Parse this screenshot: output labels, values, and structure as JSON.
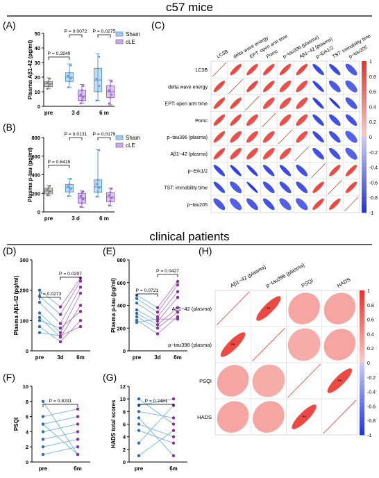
{
  "sections": {
    "mice_title": "c57 mice",
    "clinical_title": "clinical patients"
  },
  "colors": {
    "sham": "#5b9bd5",
    "cle": "#9966cc",
    "pre": "#7f7f7f",
    "patient_pre": "#2e6db4",
    "patient_post": "#8b2d9c",
    "line_pre_post": "#7ab1df",
    "corr_pos": "#e8322a",
    "corr_neg": "#2233dd"
  },
  "chart_data": [
    {
      "panel": "(A)",
      "type": "box",
      "categories": [
        "pre",
        "3 d",
        "6 m"
      ],
      "ylabel": "Plasma Aβ1-42 (pg/ml)",
      "ylim": [
        0,
        50
      ],
      "yticks": [
        0,
        10,
        20,
        30,
        40,
        50
      ],
      "legend": [
        "Sham",
        "cLE"
      ],
      "boxes": [
        {
          "cat": "pre",
          "group": "pre",
          "min": 12,
          "q1": 13.5,
          "median": 15.5,
          "q3": 17,
          "max": 19.5,
          "points": [
            12,
            14,
            15,
            16,
            17,
            19
          ]
        },
        {
          "cat": "3 d",
          "group": "Sham",
          "min": 13,
          "q1": 17,
          "median": 20,
          "q3": 23,
          "max": 29,
          "points": [
            13,
            17,
            19,
            21,
            23,
            28
          ]
        },
        {
          "cat": "3 d",
          "group": "cLE",
          "min": 2,
          "q1": 4,
          "median": 7,
          "q3": 11,
          "max": 15,
          "points": [
            2,
            4,
            6,
            8,
            11,
            14
          ]
        },
        {
          "cat": "6 m",
          "group": "Sham",
          "min": 4,
          "q1": 10,
          "median": 18,
          "q3": 26,
          "max": 36,
          "points": [
            4,
            10,
            14,
            19,
            26,
            34
          ]
        },
        {
          "cat": "6 m",
          "group": "cLE",
          "min": 1,
          "q1": 6,
          "median": 10,
          "q3": 14,
          "max": 18,
          "points": [
            2,
            6,
            8,
            11,
            14,
            17
          ]
        }
      ],
      "comparisons": [
        {
          "label": "P = 0.3249"
        },
        {
          "label": "P = 0.0072"
        },
        {
          "label": "P = 0.0275"
        }
      ]
    },
    {
      "panel": "(B)",
      "type": "box",
      "categories": [
        "pre",
        "3 d",
        "6 m"
      ],
      "ylabel": "Plasma p-tau (pg/ml)",
      "ylim": [
        0,
        800
      ],
      "yticks": [
        0,
        200,
        400,
        600,
        800
      ],
      "legend": [
        "Sham",
        "cLE"
      ],
      "boxes": [
        {
          "cat": "pre",
          "group": "pre",
          "min": 175,
          "q1": 195,
          "median": 225,
          "q3": 255,
          "max": 285,
          "points": [
            180,
            200,
            220,
            240,
            260,
            280
          ]
        },
        {
          "cat": "3 d",
          "group": "Sham",
          "min": 170,
          "q1": 215,
          "median": 260,
          "q3": 295,
          "max": 360,
          "points": [
            170,
            215,
            245,
            275,
            300,
            355
          ]
        },
        {
          "cat": "3 d",
          "group": "cLE",
          "min": 50,
          "q1": 95,
          "median": 150,
          "q3": 200,
          "max": 225,
          "points": [
            55,
            95,
            135,
            170,
            205,
            220
          ]
        },
        {
          "cat": "6 m",
          "group": "Sham",
          "min": 160,
          "q1": 210,
          "median": 270,
          "q3": 345,
          "max": 670,
          "points": [
            165,
            215,
            260,
            300,
            345,
            665
          ]
        },
        {
          "cat": "6 m",
          "group": "cLE",
          "min": 65,
          "q1": 110,
          "median": 160,
          "q3": 205,
          "max": 255,
          "points": [
            70,
            115,
            150,
            180,
            210,
            250
          ]
        }
      ],
      "comparisons": [
        {
          "label": "P = 0.6415"
        },
        {
          "label": "P = 0.0131"
        },
        {
          "label": "P = 0.0179"
        }
      ]
    },
    {
      "panel": "(C)",
      "type": "heatmap",
      "variables": [
        "LC3B",
        "delta wave energy",
        "EPT: open arm time",
        "Pomc",
        "p~tau396 (plasma)",
        "Aβ1~42 (plasma)",
        "p~Erk1/2",
        "TST: immobility time",
        "p~tau205"
      ],
      "matrix": [
        [
          1,
          0.85,
          0.85,
          0.85,
          0.85,
          0.85,
          -0.85,
          -0.85,
          -0.75
        ],
        [
          0.85,
          1,
          0.85,
          0.85,
          0.8,
          0.8,
          -0.9,
          -0.75,
          -0.7
        ],
        [
          0.85,
          0.85,
          1,
          0.8,
          0.8,
          0.8,
          -0.9,
          -0.95,
          -0.75
        ],
        [
          0.85,
          0.85,
          0.8,
          1,
          0.8,
          0.8,
          -0.85,
          -0.8,
          -0.8
        ],
        [
          0.85,
          0.8,
          0.8,
          0.8,
          1,
          0.8,
          -0.85,
          -0.8,
          -0.7
        ],
        [
          0.85,
          0.8,
          0.8,
          0.8,
          0.8,
          1,
          -0.8,
          -0.8,
          -0.7
        ],
        [
          -0.85,
          -0.9,
          -0.9,
          -0.85,
          -0.85,
          -0.8,
          1,
          0.85,
          0.85
        ],
        [
          -0.85,
          -0.75,
          -0.95,
          -0.8,
          -0.8,
          -0.8,
          0.85,
          1,
          0.85
        ],
        [
          -0.75,
          -0.7,
          -0.75,
          -0.8,
          -0.7,
          -0.7,
          0.85,
          0.85,
          1
        ]
      ],
      "colorbar_ticks": [
        "1",
        "0.8",
        "0.6",
        "0.4",
        "0.2",
        "0",
        "-0.2",
        "-0.4",
        "-0.6",
        "-0.8",
        "-1"
      ]
    },
    {
      "panel": "(D)",
      "type": "paired-line",
      "categories": [
        "pre",
        "3d",
        "6m"
      ],
      "ylabel": "Plasma Aβ1-42 (pg/ml)",
      "ylim": [
        0,
        300
      ],
      "yticks": [
        0,
        100,
        200,
        300
      ],
      "subjects": [
        [
          200,
          145,
          240
        ],
        [
          180,
          120,
          230
        ],
        [
          160,
          90,
          210
        ],
        [
          125,
          60,
          190
        ],
        [
          110,
          45,
          150
        ],
        [
          100,
          75,
          130
        ],
        [
          80,
          30,
          100
        ],
        [
          60,
          50,
          80
        ]
      ],
      "comparisons": [
        {
          "label": "P = 0.0273"
        },
        {
          "label": "P = 0.0297"
        }
      ]
    },
    {
      "panel": "(E)",
      "type": "paired-line",
      "categories": [
        "pre",
        "3d",
        "6m"
      ],
      "ylabel": "Plasma p-tau (pg/ml)",
      "ylim": [
        0,
        800
      ],
      "yticks": [
        0,
        200,
        400,
        600,
        800
      ],
      "subjects": [
        [
          490,
          380,
          610
        ],
        [
          460,
          340,
          580
        ],
        [
          420,
          300,
          520
        ],
        [
          360,
          260,
          470
        ],
        [
          330,
          230,
          380
        ],
        [
          300,
          200,
          340
        ],
        [
          270,
          150,
          300
        ],
        [
          250,
          280,
          280
        ]
      ],
      "comparisons": [
        {
          "label": "P = 0.0721"
        },
        {
          "label": "P = 0.0427"
        }
      ]
    },
    {
      "panel": "(F)",
      "type": "paired-line",
      "categories": [
        "pre",
        "6m"
      ],
      "ylabel": "PSQI",
      "ylim": [
        0,
        10
      ],
      "yticks": [
        0,
        2,
        4,
        6,
        8,
        10
      ],
      "subjects": [
        [
          8,
          1
        ],
        [
          6,
          7
        ],
        [
          5,
          6
        ],
        [
          4,
          5
        ],
        [
          3,
          4
        ],
        [
          2,
          3
        ],
        [
          1,
          2
        ],
        [
          5,
          1
        ]
      ],
      "comparisons": [
        {
          "label": "P = 0.8291"
        }
      ]
    },
    {
      "panel": "(G)",
      "type": "paired-line",
      "categories": [
        "pre",
        "6m"
      ],
      "ylabel": "HADS total scores",
      "ylim": [
        0,
        12
      ],
      "yticks": [
        0,
        2,
        4,
        6,
        8,
        10,
        12
      ],
      "subjects": [
        [
          10,
          6
        ],
        [
          9,
          10
        ],
        [
          8,
          7
        ],
        [
          7,
          1
        ],
        [
          6,
          4
        ],
        [
          5,
          3
        ],
        [
          3,
          9
        ],
        [
          1,
          5
        ]
      ],
      "comparisons": [
        {
          "label": "P = 0.2481"
        }
      ]
    },
    {
      "panel": "(H)",
      "type": "heatmap",
      "variables_top": [
        "Aβ1~42 (plasma)",
        "p~tau396 (plasma)",
        "PSQI",
        "HADS"
      ],
      "variables_left": [
        "Aβ1~42 (plasma)",
        "p~tau396 (plasma)",
        "PSQI",
        "HADS"
      ],
      "matrix": [
        [
          1,
          0.85,
          0.25,
          0.25
        ],
        [
          0.85,
          1,
          0.2,
          0.25
        ],
        [
          0.25,
          0.2,
          1,
          0.85
        ],
        [
          0.25,
          0.25,
          0.85,
          1
        ]
      ],
      "cell_marks": [
        [
          0,
          1,
          "**"
        ],
        [
          1,
          0,
          "**"
        ],
        [
          2,
          3,
          "**"
        ],
        [
          3,
          2,
          "**"
        ]
      ],
      "colorbar_ticks": [
        "1",
        "0.8",
        "0.6",
        "0.4",
        "0.2",
        "0",
        "-0.2",
        "-0.4",
        "-0.6",
        "-0.8",
        "-1"
      ]
    }
  ]
}
